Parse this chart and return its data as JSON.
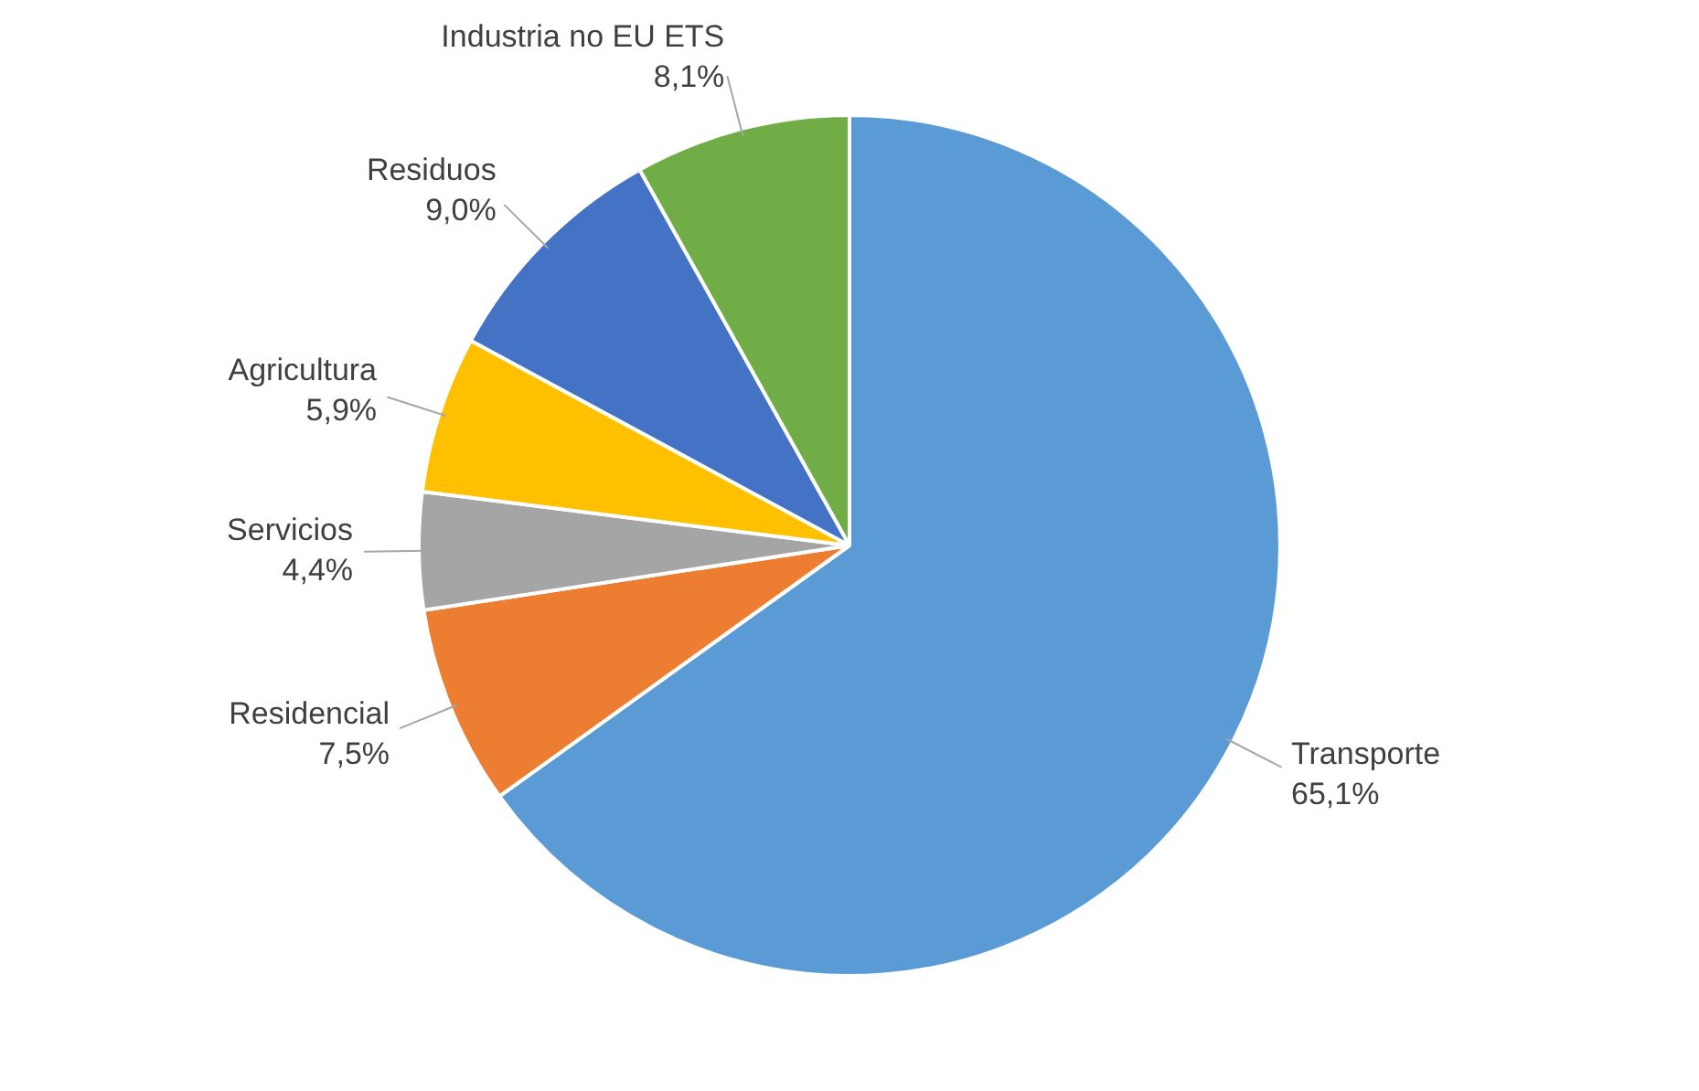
{
  "chart_data": {
    "type": "pie",
    "categories": [
      "Transporte",
      "Residencial",
      "Servicios",
      "Agricultura",
      "Residuos",
      "Industria no EU ETS"
    ],
    "values": [
      65.1,
      7.5,
      4.4,
      5.9,
      9.0,
      8.1
    ],
    "value_labels": [
      "65,1%",
      "7,5%",
      "4,4%",
      "5,9%",
      "9,0%",
      "8,1%"
    ],
    "colors": [
      "#5b9bd5",
      "#ed7d31",
      "#a5a5a5",
      "#ffc000",
      "#4472c4",
      "#70ad47"
    ],
    "legend": false
  }
}
